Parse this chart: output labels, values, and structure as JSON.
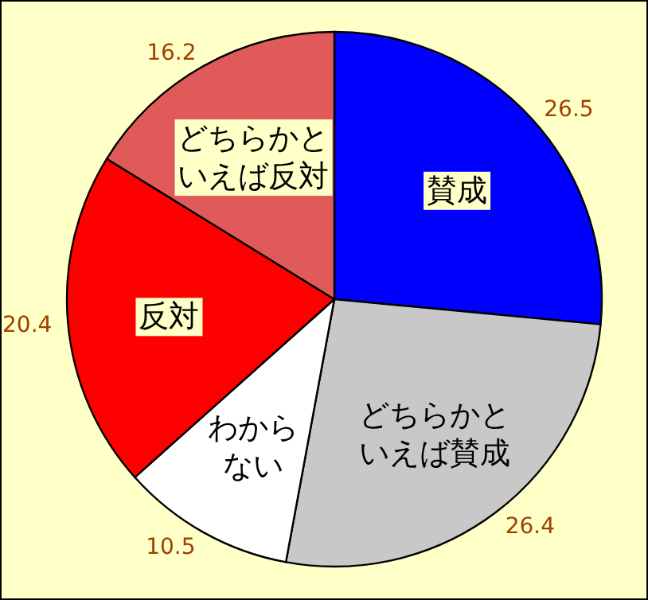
{
  "chart_data": {
    "type": "pie",
    "categories": [
      "賛成",
      "どちらかといえば賛成",
      "わからない",
      "反対",
      "どちらかといえば反対"
    ],
    "values": [
      26.5,
      26.4,
      10.5,
      20.4,
      16.2
    ],
    "colors": [
      "#0000ff",
      "#c8c8c8",
      "#ffffff",
      "#ff0000",
      "#e05a5a"
    ],
    "data_labels": true
  }
}
